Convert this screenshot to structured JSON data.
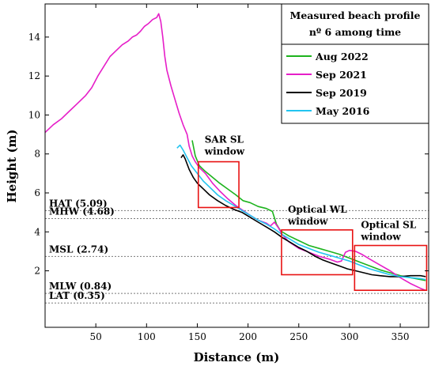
{
  "chart_data": {
    "type": "line",
    "title": "",
    "xlabel": "Distance (m)",
    "ylabel": "Height (m)",
    "xlim": [
      0,
      378
    ],
    "ylim": [
      -0.9,
      15.7
    ],
    "x_ticks": [
      50,
      100,
      150,
      200,
      250,
      300,
      350
    ],
    "y_ticks": [
      2,
      4,
      6,
      8,
      10,
      12,
      14
    ],
    "grid": false,
    "legend": {
      "title_lines": [
        "Measured beach profile",
        "nº 6 among time"
      ],
      "placement": "top-right"
    },
    "series": [
      {
        "name": "Aug 2022",
        "color": "#1db31d",
        "points": [
          [
            145,
            8.7
          ],
          [
            148,
            7.9
          ],
          [
            152,
            7.4
          ],
          [
            158,
            7.1
          ],
          [
            165,
            6.8
          ],
          [
            172,
            6.5
          ],
          [
            180,
            6.2
          ],
          [
            188,
            5.9
          ],
          [
            195,
            5.6
          ],
          [
            202,
            5.5
          ],
          [
            210,
            5.3
          ],
          [
            218,
            5.2
          ],
          [
            224,
            5.05
          ],
          [
            228,
            4.4
          ],
          [
            232,
            4.05
          ],
          [
            240,
            3.8
          ],
          [
            250,
            3.55
          ],
          [
            260,
            3.3
          ],
          [
            270,
            3.15
          ],
          [
            280,
            3.0
          ],
          [
            290,
            2.85
          ],
          [
            300,
            2.65
          ],
          [
            310,
            2.45
          ],
          [
            320,
            2.25
          ],
          [
            330,
            2.05
          ],
          [
            340,
            1.9
          ],
          [
            350,
            1.75
          ],
          [
            360,
            1.65
          ],
          [
            370,
            1.55
          ],
          [
            375,
            1.5
          ]
        ]
      },
      {
        "name": "Sep 2021",
        "color": "#e61ec8",
        "points": [
          [
            0,
            9.1
          ],
          [
            8,
            9.5
          ],
          [
            16,
            9.8
          ],
          [
            24,
            10.2
          ],
          [
            32,
            10.6
          ],
          [
            40,
            11.0
          ],
          [
            46,
            11.4
          ],
          [
            52,
            12.0
          ],
          [
            58,
            12.5
          ],
          [
            64,
            13.0
          ],
          [
            70,
            13.3
          ],
          [
            76,
            13.6
          ],
          [
            82,
            13.8
          ],
          [
            86,
            14.0
          ],
          [
            90,
            14.1
          ],
          [
            94,
            14.3
          ],
          [
            98,
            14.55
          ],
          [
            102,
            14.7
          ],
          [
            106,
            14.9
          ],
          [
            110,
            15.0
          ],
          [
            112,
            15.2
          ],
          [
            114,
            14.8
          ],
          [
            116,
            14.0
          ],
          [
            118,
            13.0
          ],
          [
            120,
            12.3
          ],
          [
            124,
            11.5
          ],
          [
            128,
            10.8
          ],
          [
            132,
            10.1
          ],
          [
            136,
            9.5
          ],
          [
            140,
            9.0
          ],
          [
            142,
            8.4
          ],
          [
            145,
            7.9
          ],
          [
            148,
            7.6
          ],
          [
            152,
            7.3
          ],
          [
            158,
            7.0
          ],
          [
            165,
            6.5
          ],
          [
            172,
            6.1
          ],
          [
            180,
            5.7
          ],
          [
            188,
            5.35
          ],
          [
            195,
            5.1
          ],
          [
            202,
            4.85
          ],
          [
            210,
            4.6
          ],
          [
            218,
            4.45
          ],
          [
            222,
            4.3
          ],
          [
            226,
            4.5
          ],
          [
            230,
            4.2
          ],
          [
            234,
            3.85
          ],
          [
            240,
            3.5
          ],
          [
            250,
            3.15
          ],
          [
            260,
            2.95
          ],
          [
            270,
            2.75
          ],
          [
            280,
            2.6
          ],
          [
            288,
            2.45
          ],
          [
            292,
            2.5
          ],
          [
            296,
            2.95
          ],
          [
            300,
            3.05
          ],
          [
            306,
            3.0
          ],
          [
            312,
            2.85
          ],
          [
            320,
            2.6
          ],
          [
            330,
            2.3
          ],
          [
            340,
            2.0
          ],
          [
            350,
            1.65
          ],
          [
            360,
            1.35
          ],
          [
            370,
            1.1
          ],
          [
            375,
            1.0
          ]
        ]
      },
      {
        "name": "Sep 2019",
        "color": "#000000",
        "points": [
          [
            134,
            7.8
          ],
          [
            136,
            7.95
          ],
          [
            138,
            7.75
          ],
          [
            142,
            7.2
          ],
          [
            146,
            6.8
          ],
          [
            150,
            6.5
          ],
          [
            156,
            6.2
          ],
          [
            162,
            5.9
          ],
          [
            170,
            5.6
          ],
          [
            178,
            5.35
          ],
          [
            186,
            5.15
          ],
          [
            194,
            5.0
          ],
          [
            202,
            4.75
          ],
          [
            210,
            4.5
          ],
          [
            218,
            4.25
          ],
          [
            226,
            4.0
          ],
          [
            234,
            3.7
          ],
          [
            242,
            3.45
          ],
          [
            250,
            3.2
          ],
          [
            258,
            3.0
          ],
          [
            266,
            2.75
          ],
          [
            274,
            2.55
          ],
          [
            282,
            2.4
          ],
          [
            290,
            2.25
          ],
          [
            298,
            2.1
          ],
          [
            306,
            2.0
          ],
          [
            314,
            1.9
          ],
          [
            322,
            1.8
          ],
          [
            330,
            1.75
          ],
          [
            340,
            1.7
          ],
          [
            350,
            1.7
          ],
          [
            360,
            1.75
          ],
          [
            370,
            1.75
          ],
          [
            375,
            1.7
          ]
        ]
      },
      {
        "name": "May 2016",
        "color": "#22c4f0",
        "points": [
          [
            130,
            8.3
          ],
          [
            133,
            8.45
          ],
          [
            136,
            8.2
          ],
          [
            140,
            7.8
          ],
          [
            144,
            7.4
          ],
          [
            150,
            7.0
          ],
          [
            156,
            6.6
          ],
          [
            162,
            6.3
          ],
          [
            170,
            5.9
          ],
          [
            178,
            5.6
          ],
          [
            186,
            5.35
          ],
          [
            194,
            5.1
          ],
          [
            202,
            4.85
          ],
          [
            210,
            4.6
          ],
          [
            218,
            4.4
          ],
          [
            226,
            4.15
          ],
          [
            234,
            3.85
          ],
          [
            242,
            3.6
          ],
          [
            250,
            3.35
          ],
          [
            260,
            3.15
          ],
          [
            270,
            2.95
          ],
          [
            280,
            2.8
          ],
          [
            290,
            2.65
          ],
          [
            300,
            2.5
          ],
          [
            310,
            2.3
          ],
          [
            320,
            2.1
          ],
          [
            330,
            1.95
          ],
          [
            340,
            1.8
          ],
          [
            350,
            1.7
          ],
          [
            360,
            1.65
          ],
          [
            370,
            1.6
          ],
          [
            375,
            1.55
          ]
        ]
      }
    ],
    "reference_lines": [
      {
        "label": "HAT (5.09)",
        "y": 5.09
      },
      {
        "label": "MHW (4.68)",
        "y": 4.68
      },
      {
        "label": "MSL (2.74)",
        "y": 2.74
      },
      {
        "label": "MLW (0.84)",
        "y": 0.84
      },
      {
        "label": "LAT (0.35)",
        "y": 0.35
      }
    ],
    "reference_style": {
      "color": "#7a7a7a",
      "dash": "dotted"
    },
    "windows": [
      {
        "label_lines": [
          "SAR SL",
          "window"
        ],
        "x0": 151,
        "x1": 191,
        "y0": 5.25,
        "y1": 7.6,
        "color": "#e81212"
      },
      {
        "label_lines": [
          "Optical WL",
          "window"
        ],
        "x0": 233,
        "x1": 303,
        "y0": 1.8,
        "y1": 4.1,
        "color": "#e81212"
      },
      {
        "label_lines": [
          "Optical SL",
          "window"
        ],
        "x0": 305,
        "x1": 376,
        "y0": 1.0,
        "y1": 3.3,
        "color": "#e81212"
      }
    ]
  }
}
